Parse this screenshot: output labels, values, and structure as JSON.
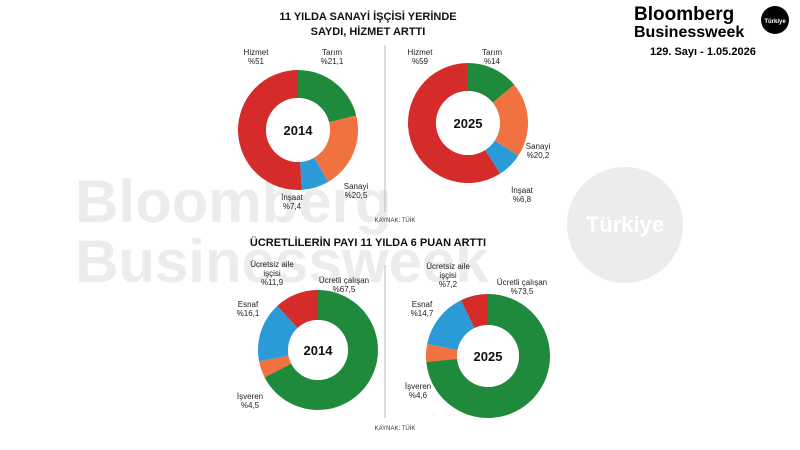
{
  "header": {
    "brand_line1": "Bloomberg",
    "brand_line2": "Businessweek",
    "badge": "Türkiye",
    "issue": "129. Sayı - 1.05.2026"
  },
  "watermark": {
    "line1": "Bloomberg",
    "line2": "Businessweek",
    "badge": "Türkiye"
  },
  "sections": [
    {
      "title_lines": [
        "11 YILDA SANAYİ İŞÇİSİ YERİNDE",
        "SAYDI, HİZMET ARTTI"
      ],
      "source": "KAYNAK: TÜİK"
    },
    {
      "title_lines": [
        "ÜCRETLİLERİN PAYI 11 YILDA 6 PUAN ARTTI"
      ],
      "source": "KAYNAK: TÜİK"
    }
  ],
  "chart_data": [
    {
      "type": "donut",
      "center_label": "2014",
      "categories": [
        "Tarım",
        "Sanayi",
        "İnşaat",
        "Hizmet"
      ],
      "values": [
        21.1,
        20.5,
        7.4,
        51
      ],
      "value_labels": [
        "%21,1",
        "%20,5",
        "%7,4",
        "%51"
      ],
      "colors": [
        "#1f8a3c",
        "#f07240",
        "#2b9bd8",
        "#d52b2b"
      ]
    },
    {
      "type": "donut",
      "center_label": "2025",
      "categories": [
        "Tarım",
        "Sanayi",
        "İnşaat",
        "Hizmet"
      ],
      "values": [
        14,
        20.2,
        6.8,
        59
      ],
      "value_labels": [
        "%14",
        "%20,2",
        "%6,8",
        "%59"
      ],
      "colors": [
        "#1f8a3c",
        "#f07240",
        "#2b9bd8",
        "#d52b2b"
      ]
    },
    {
      "type": "donut",
      "center_label": "2014",
      "categories": [
        "Ücretli çalışan",
        "İşveren",
        "Esnaf",
        "Ücretsiz aile işçisi"
      ],
      "values": [
        67.5,
        4.5,
        16.1,
        11.9
      ],
      "value_labels": [
        "%67,5",
        "%4,5",
        "%16,1",
        "%11,9"
      ],
      "colors": [
        "#1f8a3c",
        "#f07240",
        "#2b9bd8",
        "#d52b2b"
      ]
    },
    {
      "type": "donut",
      "center_label": "2025",
      "categories": [
        "Ücretli çalışan",
        "İşveren",
        "Esnaf",
        "Ücretsiz aile işçisi"
      ],
      "values": [
        73.5,
        4.6,
        14.7,
        7.2
      ],
      "value_labels": [
        "%73,5",
        "%4,6",
        "%14,7",
        "%7,2"
      ],
      "colors": [
        "#1f8a3c",
        "#f07240",
        "#2b9bd8",
        "#d52b2b"
      ]
    }
  ]
}
